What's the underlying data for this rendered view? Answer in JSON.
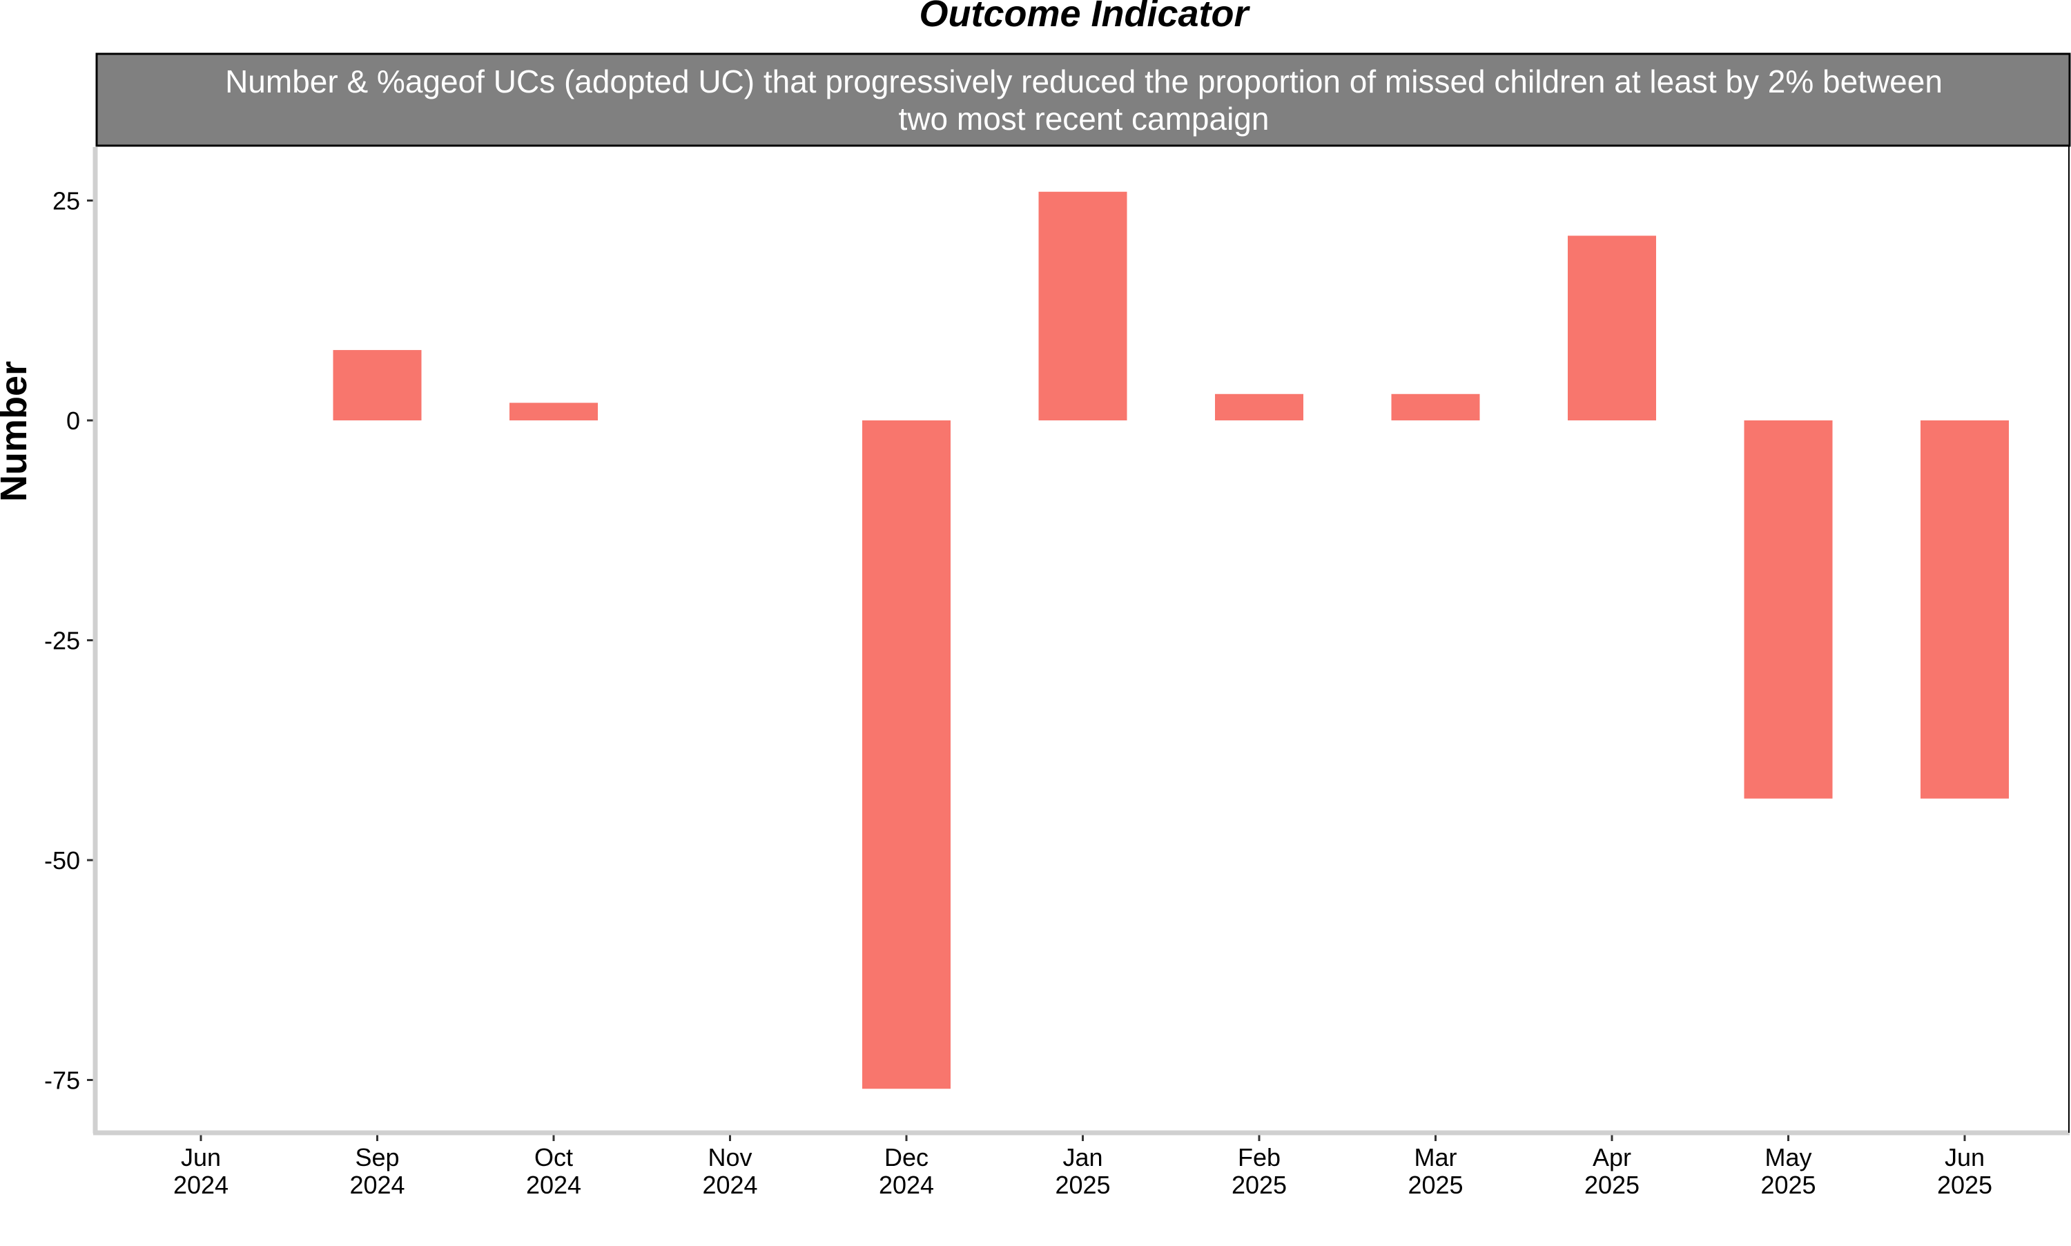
{
  "chart_data": {
    "type": "bar",
    "title": "Outcome Indicator",
    "facet_label": "Number & %ageof UCs (adopted UC) that progressively reduced the proportion of missed children at least by 2% between two most recent campaign",
    "ylabel": "Number",
    "xlabel": "",
    "ylim": [
      -81,
      31
    ],
    "y_ticks": [
      25,
      0,
      -25,
      -50,
      -75
    ],
    "y_tick_labels": [
      "25",
      "0",
      "-25",
      "-50",
      "-75"
    ],
    "x_ticks": [
      {
        "month": "Jun",
        "year": "2024"
      },
      {
        "month": "Sep",
        "year": "2024"
      },
      {
        "month": "Oct",
        "year": "2024"
      },
      {
        "month": "Nov",
        "year": "2024"
      },
      {
        "month": "Dec",
        "year": "2024"
      },
      {
        "month": "Jan",
        "year": "2025"
      },
      {
        "month": "Feb",
        "year": "2025"
      },
      {
        "month": "Mar",
        "year": "2025"
      },
      {
        "month": "Apr",
        "year": "2025"
      },
      {
        "month": "May",
        "year": "2025"
      },
      {
        "month": "Jun",
        "year": "2025"
      }
    ],
    "values": [
      null,
      8,
      2,
      null,
      -76,
      26,
      3,
      3,
      21,
      -43,
      -43
    ],
    "bar_color": "#F8766D",
    "strip_color": "#808080",
    "grid": false
  }
}
